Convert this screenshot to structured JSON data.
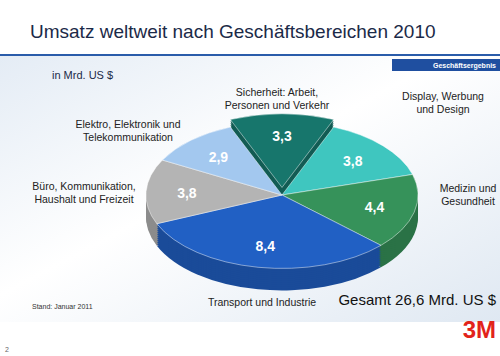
{
  "chart_data": {
    "type": "pie",
    "title": "Umsatz weltweit nach Geschäftsbereichen 2010",
    "subtitle": "in Mrd. US $",
    "categories": [
      "Sicherheit: Arbeit, Personen und Verkehr",
      "Display, Werbung und Design",
      "Medizin und Gesundheit",
      "Transport und Industrie",
      "Büro, Kommunikation, Haushalt und Freizeit",
      "Elektro, Elektronik und Telekommunikation"
    ],
    "values": [
      3.3,
      3.8,
      4.4,
      8.4,
      3.8,
      2.9
    ],
    "value_labels": [
      "3,3",
      "3,8",
      "4,4",
      "8,4",
      "3,8",
      "2,9"
    ],
    "colors": [
      "#17766c",
      "#3fc6bf",
      "#36925a",
      "#2160c4",
      "#b4b4b4",
      "#a3c8ef"
    ],
    "data_labels": true,
    "annotations": [
      "Geschäftsergebnis",
      "Stand: Januar 2011",
      "Gesamt 26,6 Mrd. US $",
      "3M",
      "2"
    ]
  }
}
